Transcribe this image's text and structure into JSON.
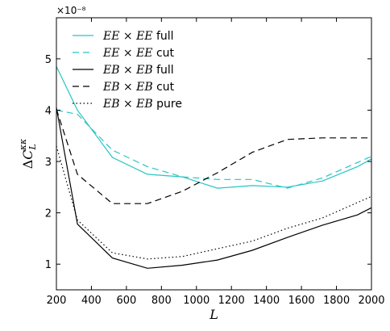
{
  "chart_data": {
    "type": "line",
    "xlabel": "L",
    "ylabel": "ΔC_L^{κκ}",
    "y_offset_label": "×10⁻⁸",
    "xlim": [
      200,
      2000
    ],
    "ylim": [
      0.5,
      5.8
    ],
    "xticks": [
      "200",
      "400",
      "600",
      "800",
      "1000",
      "1200",
      "1400",
      "1600",
      "1800",
      "2000"
    ],
    "yticks": [
      "1",
      "2",
      "3",
      "4",
      "5"
    ],
    "grid": false,
    "legend_position": "top-left",
    "series": [
      {
        "name": "EE × EE full",
        "label_main": "EE × EE",
        "label_suffix": "full",
        "color": "#29c4c4",
        "dash": "solid",
        "x": [
          200,
          320,
          520,
          720,
          920,
          1120,
          1320,
          1520,
          1720,
          1920,
          2000
        ],
        "y": [
          4.85,
          4.0,
          3.08,
          2.75,
          2.7,
          2.48,
          2.53,
          2.5,
          2.62,
          2.9,
          3.05
        ]
      },
      {
        "name": "EE × EE cut",
        "label_main": "EE × EE",
        "label_suffix": "cut",
        "color": "#29c4c4",
        "dash": "dashed",
        "x": [
          200,
          320,
          520,
          720,
          920,
          1120,
          1320,
          1520,
          1720,
          1920,
          2000
        ],
        "y": [
          4.0,
          3.92,
          3.22,
          2.9,
          2.7,
          2.65,
          2.65,
          2.48,
          2.68,
          2.98,
          3.1
        ]
      },
      {
        "name": "EB × EB full",
        "label_main": "EB × EB",
        "label_suffix": "full",
        "color": "#000000",
        "dash": "solid",
        "x": [
          200,
          320,
          520,
          720,
          920,
          1120,
          1320,
          1520,
          1720,
          1920,
          2000
        ],
        "y": [
          4.05,
          1.78,
          1.12,
          0.92,
          0.98,
          1.08,
          1.27,
          1.52,
          1.76,
          1.96,
          2.1
        ]
      },
      {
        "name": "EB × EB cut",
        "label_main": "EB × EB",
        "label_suffix": "cut",
        "color": "#000000",
        "dash": "dashed",
        "x": [
          200,
          320,
          520,
          720,
          920,
          1120,
          1320,
          1520,
          1720,
          1920,
          2000
        ],
        "y": [
          4.02,
          2.75,
          2.18,
          2.18,
          2.42,
          2.78,
          3.18,
          3.43,
          3.46,
          3.46,
          3.46
        ]
      },
      {
        "name": "EB × EB pure",
        "label_main": "EB × EB",
        "label_suffix": "pure",
        "color": "#000000",
        "dash": "dotted",
        "x": [
          200,
          320,
          520,
          720,
          920,
          1120,
          1320,
          1520,
          1720,
          1920,
          2000
        ],
        "y": [
          3.3,
          1.86,
          1.22,
          1.1,
          1.15,
          1.3,
          1.45,
          1.7,
          1.9,
          2.2,
          2.32
        ]
      }
    ]
  }
}
